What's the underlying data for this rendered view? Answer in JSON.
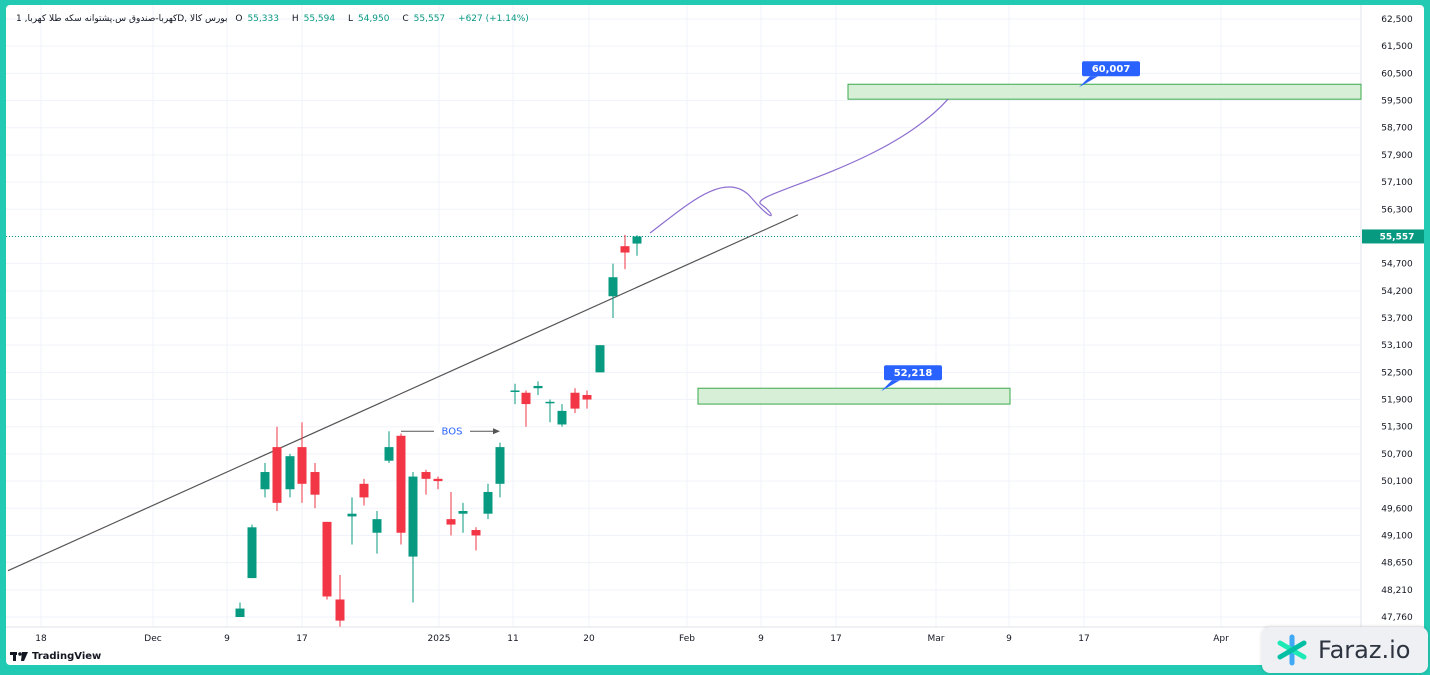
{
  "header": {
    "symbol": "کهربا-صندوق س.پشتوانه سکه طلا کهربا, 1D, بورس کالا",
    "open_label": "O",
    "open": "55,333",
    "high_label": "H",
    "high": "55,594",
    "low_label": "L",
    "low": "54,950",
    "close_label": "C",
    "close": "55,557",
    "change": "+627 (+1.14%)"
  },
  "branding": {
    "tradingview": "TradingView",
    "watermark": "Faraz.io"
  },
  "colors": {
    "up": "#089981",
    "down": "#f23645",
    "zone_fill": "#d6efd6",
    "zone_border": "#3aa84b",
    "label": "#2962ff",
    "projection": "#8e6fd1",
    "trendline": "#555555",
    "frame": "#22c9b3"
  },
  "chart_data": {
    "type": "candlestick",
    "ylim": [
      47760,
      62500
    ],
    "price_scale_ticks": [
      "62,500",
      "61,500",
      "60,500",
      "59,500",
      "58,700",
      "57,900",
      "57,100",
      "56,300",
      "55,557",
      "54,700",
      "54,200",
      "53,700",
      "53,100",
      "52,500",
      "51,900",
      "51,300",
      "50,700",
      "50,100",
      "49,600",
      "49,100",
      "48,650",
      "48,210",
      "47,760"
    ],
    "time_labels": [
      "18",
      "Dec",
      "9",
      "17",
      "2025",
      "11",
      "20",
      "Feb",
      "9",
      "17",
      "Mar",
      "9",
      "17",
      "Apr"
    ],
    "last_price": "55,557",
    "candles": [
      {
        "date": "Dec 9",
        "o": 47760,
        "h": 48000,
        "l": 47760,
        "c": 47900
      },
      {
        "date": "Dec 10",
        "o": 48400,
        "h": 49300,
        "l": 48400,
        "c": 49250
      },
      {
        "date": "Dec 11",
        "o": 49950,
        "h": 50500,
        "l": 49800,
        "c": 50300
      },
      {
        "date": "Dec 14",
        "o": 50850,
        "h": 51300,
        "l": 49550,
        "c": 49700
      },
      {
        "date": "Dec 15",
        "o": 49950,
        "h": 50700,
        "l": 49800,
        "c": 50650
      },
      {
        "date": "Dec 16",
        "o": 50850,
        "h": 51400,
        "l": 49700,
        "c": 50050
      },
      {
        "date": "Dec 17",
        "o": 50300,
        "h": 50500,
        "l": 49600,
        "c": 49850
      },
      {
        "date": "Dec 18",
        "o": 49350,
        "h": 49350,
        "l": 48050,
        "c": 48100
      },
      {
        "date": "Dec 21",
        "o": 48050,
        "h": 48450,
        "l": 47600,
        "c": 47700
      },
      {
        "date": "Dec 22",
        "o": 49450,
        "h": 49800,
        "l": 48950,
        "c": 49500
      },
      {
        "date": "Dec 23",
        "o": 50050,
        "h": 50150,
        "l": 49650,
        "c": 49800
      },
      {
        "date": "Dec 24",
        "o": 49150,
        "h": 49550,
        "l": 48800,
        "c": 49400
      },
      {
        "date": "Dec 25",
        "o": 50550,
        "h": 51200,
        "l": 50500,
        "c": 50850
      },
      {
        "date": "Dec 28",
        "o": 51100,
        "h": 51150,
        "l": 48950,
        "c": 49150
      },
      {
        "date": "Dec 29",
        "o": 48750,
        "h": 50300,
        "l": 48000,
        "c": 50200
      },
      {
        "date": "Dec 30",
        "o": 50300,
        "h": 50350,
        "l": 49850,
        "c": 50150
      },
      {
        "date": "Dec 31",
        "o": 50150,
        "h": 50200,
        "l": 49950,
        "c": 50100
      },
      {
        "date": "2025",
        "o": 49400,
        "h": 49900,
        "l": 49100,
        "c": 49300
      },
      {
        "date": "Jan 4",
        "o": 49500,
        "h": 49700,
        "l": 49150,
        "c": 49550
      },
      {
        "date": "Jan 5",
        "o": 49200,
        "h": 49250,
        "l": 48850,
        "c": 49100
      },
      {
        "date": "Jan 6",
        "o": 49500,
        "h": 50050,
        "l": 49400,
        "c": 49900
      },
      {
        "date": "Jan 7",
        "o": 50050,
        "h": 50950,
        "l": 49800,
        "c": 50850
      },
      {
        "date": "Jan 11",
        "o": 52100,
        "h": 52250,
        "l": 51800,
        "c": 52100
      },
      {
        "date": "Jan 12",
        "o": 52050,
        "h": 52100,
        "l": 51300,
        "c": 51800
      },
      {
        "date": "Jan 13",
        "o": 52150,
        "h": 52300,
        "l": 52000,
        "c": 52200
      },
      {
        "date": "Jan 14",
        "o": 51850,
        "h": 51900,
        "l": 51400,
        "c": 51850
      },
      {
        "date": "Jan 15",
        "o": 51350,
        "h": 51800,
        "l": 51300,
        "c": 51650
      },
      {
        "date": "Jan 18",
        "o": 52050,
        "h": 52150,
        "l": 51600,
        "c": 51700
      },
      {
        "date": "Jan 19",
        "o": 52000,
        "h": 52100,
        "l": 51700,
        "c": 51900
      },
      {
        "date": "Jan 20",
        "o": 52500,
        "h": 53100,
        "l": 52500,
        "c": 53100
      },
      {
        "date": "Jan 21",
        "o": 54100,
        "h": 54700,
        "l": 53700,
        "c": 54450
      },
      {
        "date": "Jan 22",
        "o": 55250,
        "h": 55600,
        "l": 54600,
        "c": 55050
      },
      {
        "date": "Jan 25",
        "o": 55333,
        "h": 55594,
        "l": 54950,
        "c": 55557
      }
    ],
    "zones": [
      {
        "label": "60,007",
        "top": 60100,
        "bottom": 59550
      },
      {
        "label": "52,218",
        "top": 52150,
        "bottom": 51800
      }
    ],
    "annotations": [
      "BOS"
    ]
  }
}
